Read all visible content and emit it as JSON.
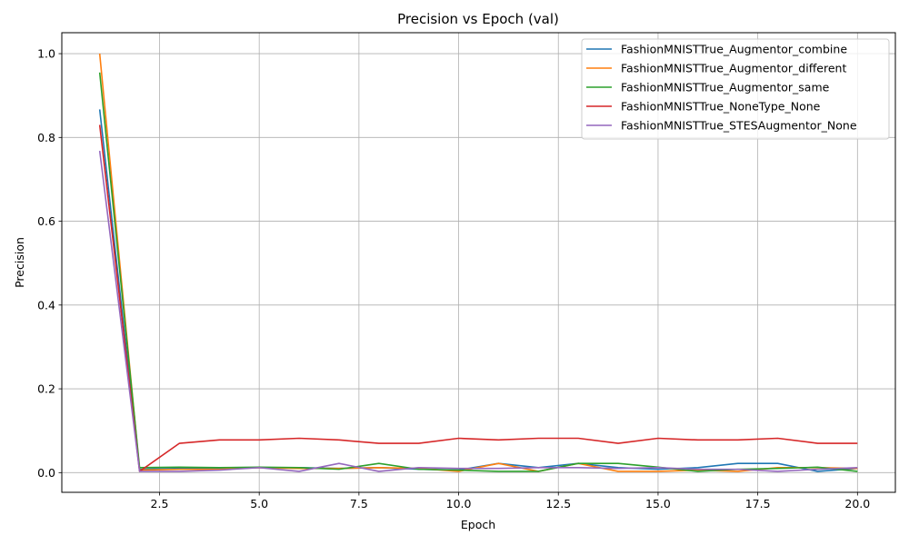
{
  "chart_data": {
    "type": "line",
    "title": "Precision vs Epoch (val)",
    "xlabel": "Epoch",
    "ylabel": "Precision",
    "xlim": [
      0.05,
      20.95
    ],
    "ylim": [
      -0.047,
      1.05
    ],
    "xticks": [
      2.5,
      5.0,
      7.5,
      10.0,
      12.5,
      15.0,
      17.5,
      20.0
    ],
    "xtick_labels": [
      "2.5",
      "5.0",
      "7.5",
      "10.0",
      "12.5",
      "15.0",
      "17.5",
      "20.0"
    ],
    "yticks": [
      0.0,
      0.2,
      0.4,
      0.6,
      0.8,
      1.0
    ],
    "ytick_labels": [
      "0.0",
      "0.2",
      "0.4",
      "0.6",
      "0.8",
      "1.0"
    ],
    "grid": true,
    "legend_position": "top-right",
    "x": [
      1,
      2,
      3,
      4,
      5,
      6,
      7,
      8,
      9,
      10,
      11,
      12,
      13,
      14,
      15,
      16,
      17,
      18,
      19,
      20
    ],
    "series": [
      {
        "name": "FashionMNISTTrue_Augmentor_combine",
        "color": "#1f77b4",
        "values": [
          0.867,
          0.008,
          0.01,
          0.01,
          0.012,
          0.012,
          0.01,
          0.012,
          0.008,
          0.006,
          0.022,
          0.012,
          0.022,
          0.012,
          0.008,
          0.012,
          0.022,
          0.022,
          0.003,
          0.01
        ]
      },
      {
        "name": "FashionMNISTTrue_Augmentor_different",
        "color": "#ff7f0e",
        "values": [
          1.0,
          0.006,
          0.008,
          0.008,
          0.012,
          0.01,
          0.01,
          0.012,
          0.01,
          0.003,
          0.022,
          0.003,
          0.022,
          0.003,
          0.003,
          0.006,
          0.003,
          0.012,
          0.012,
          0.01
        ]
      },
      {
        "name": "FashionMNISTTrue_Augmentor_same",
        "color": "#2ca02c",
        "values": [
          0.955,
          0.012,
          0.013,
          0.012,
          0.013,
          0.012,
          0.008,
          0.022,
          0.008,
          0.006,
          0.003,
          0.003,
          0.022,
          0.022,
          0.013,
          0.003,
          0.008,
          0.01,
          0.013,
          0.003
        ]
      },
      {
        "name": "FashionMNISTTrue_NoneType_None",
        "color": "#d62728",
        "values": [
          0.83,
          0.003,
          0.07,
          0.078,
          0.078,
          0.082,
          0.078,
          0.07,
          0.07,
          0.082,
          0.078,
          0.082,
          0.082,
          0.07,
          0.082,
          0.078,
          0.078,
          0.082,
          0.07,
          0.07
        ]
      },
      {
        "name": "FashionMNISTTrue_STESAugmentor_None",
        "color": "#9467bd",
        "values": [
          0.768,
          0.003,
          0.003,
          0.006,
          0.012,
          0.003,
          0.022,
          0.003,
          0.012,
          0.01,
          0.01,
          0.012,
          0.012,
          0.01,
          0.012,
          0.008,
          0.008,
          0.003,
          0.008,
          0.012
        ]
      }
    ]
  }
}
